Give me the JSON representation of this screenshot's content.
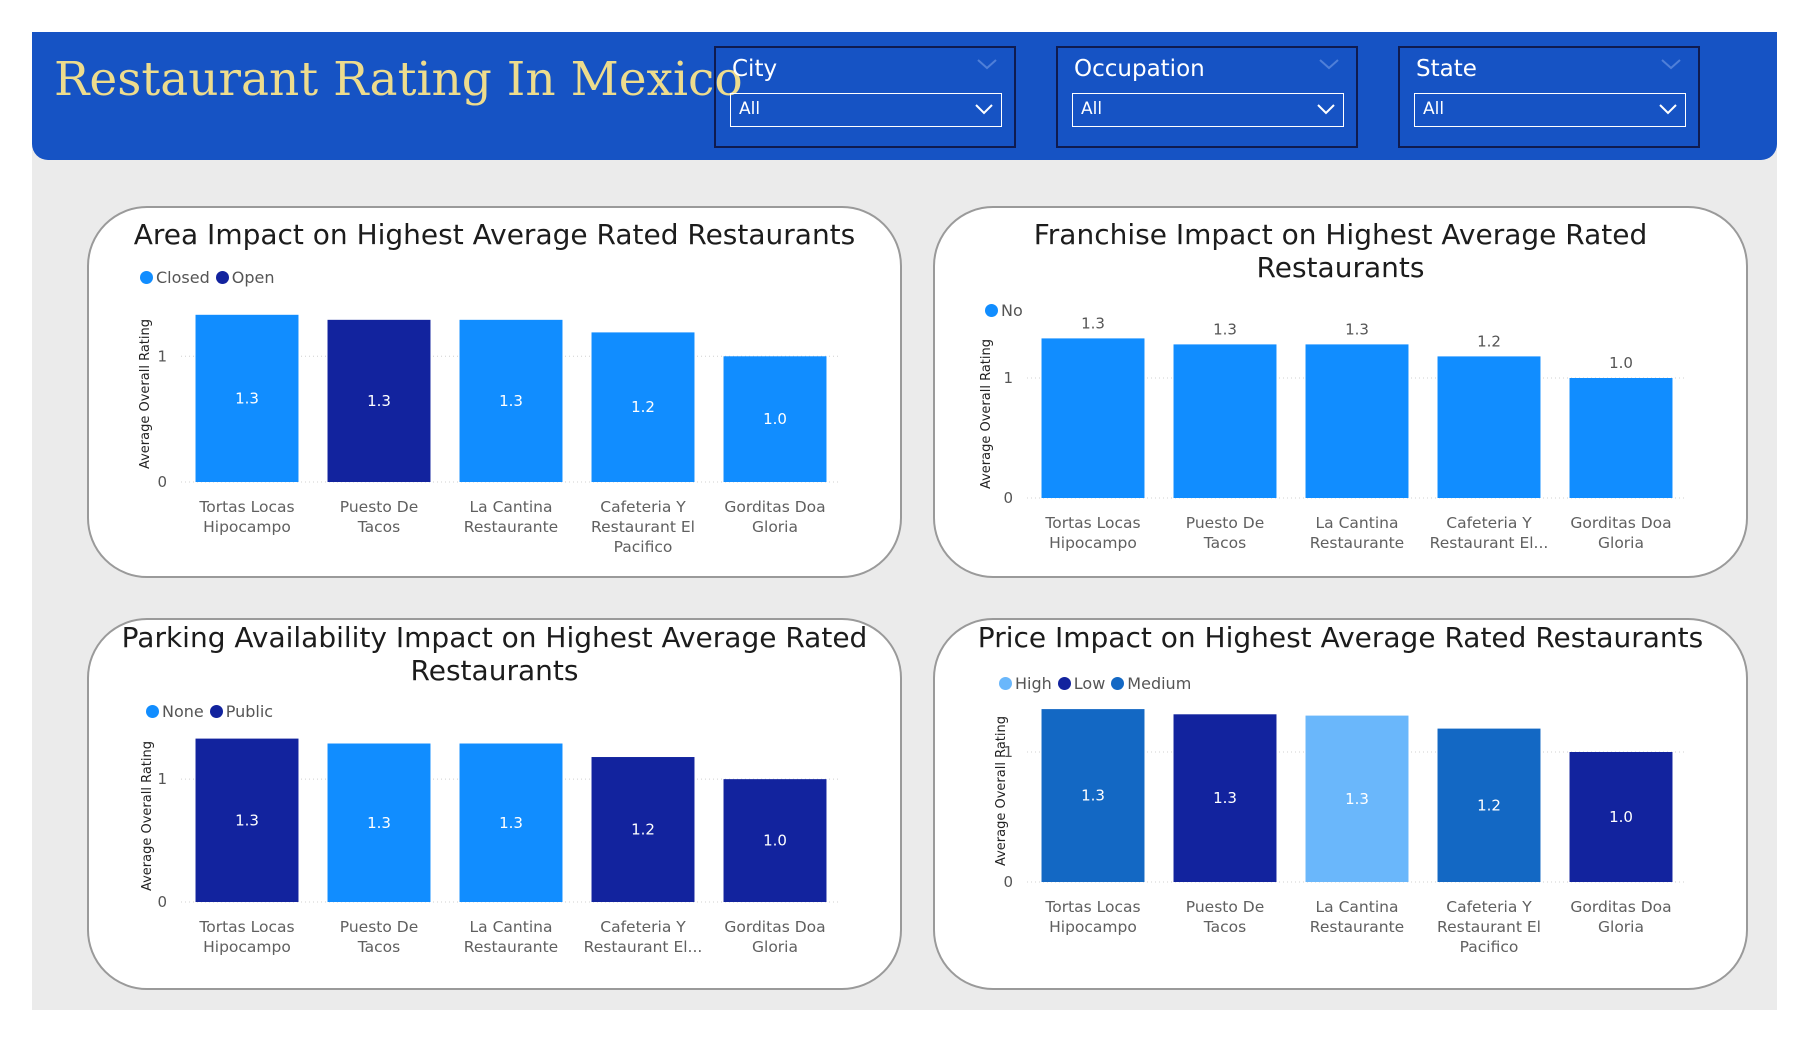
{
  "header": {
    "title": "Restaurant Rating In Mexico"
  },
  "slicers": [
    {
      "label": "City",
      "value": "All"
    },
    {
      "label": "Occupation",
      "value": "All"
    },
    {
      "label": "State",
      "value": "All"
    }
  ],
  "colors": {
    "header_bg": "#1653c4",
    "title_text": "#eddc8d",
    "canvas_bg": "#ebebeb",
    "series_bright": "#118dff",
    "series_dark": "#12239e",
    "series_medium": "#1368c4",
    "series_light": "#6ab7fb"
  },
  "chart_data": [
    {
      "id": "area",
      "type": "bar",
      "title": "Area Impact on Highest Average Rated Restaurants",
      "ylabel": "Average Overall Rating",
      "ylim": [
        0,
        1.4
      ],
      "yticks": [
        "0",
        "1"
      ],
      "legend_position": "top-left",
      "label_position": "inside",
      "legend": [
        {
          "name": "Closed",
          "color": "#118dff"
        },
        {
          "name": "Open",
          "color": "#12239e"
        }
      ],
      "categories": [
        [
          "Tortas Locas",
          "Hipocampo"
        ],
        [
          "Puesto De",
          "Tacos"
        ],
        [
          "La Cantina",
          "Restaurante"
        ],
        [
          "Cafeteria Y",
          "Restaurant El",
          "Pacifico"
        ],
        [
          "Gorditas Doa",
          "Gloria"
        ]
      ],
      "values": [
        1.33,
        1.29,
        1.29,
        1.19,
        1.0
      ],
      "labels": [
        "1.3",
        "1.3",
        "1.3",
        "1.2",
        "1.0"
      ],
      "bar_series": [
        "Closed",
        "Open",
        "Closed",
        "Closed",
        "Closed"
      ]
    },
    {
      "id": "franchise",
      "type": "bar",
      "title": "Franchise Impact on Highest Average Rated Restaurants",
      "ylabel": "Average Overall Rating",
      "ylim": [
        0,
        1.4
      ],
      "yticks": [
        "0",
        "1"
      ],
      "legend_position": "top-left",
      "label_position": "above",
      "legend": [
        {
          "name": "No",
          "color": "#118dff"
        }
      ],
      "categories": [
        [
          "Tortas Locas",
          "Hipocampo"
        ],
        [
          "Puesto De",
          "Tacos"
        ],
        [
          "La Cantina",
          "Restaurante"
        ],
        [
          "Cafeteria Y",
          "Restaurant El..."
        ],
        [
          "Gorditas Doa",
          "Gloria"
        ]
      ],
      "values": [
        1.33,
        1.28,
        1.28,
        1.18,
        1.0
      ],
      "labels": [
        "1.3",
        "1.3",
        "1.3",
        "1.2",
        "1.0"
      ],
      "bar_series": [
        "No",
        "No",
        "No",
        "No",
        "No"
      ]
    },
    {
      "id": "parking",
      "type": "bar",
      "title": "Parking Availability Impact on Highest Average Rated Restaurants",
      "ylabel": "Average Overall Rating",
      "ylim": [
        0,
        1.4
      ],
      "yticks": [
        "0",
        "1"
      ],
      "legend_position": "top-left",
      "label_position": "inside",
      "legend": [
        {
          "name": "None",
          "color": "#118dff"
        },
        {
          "name": "Public",
          "color": "#12239e"
        }
      ],
      "categories": [
        [
          "Tortas Locas",
          "Hipocampo"
        ],
        [
          "Puesto De",
          "Tacos"
        ],
        [
          "La Cantina",
          "Restaurante"
        ],
        [
          "Cafeteria Y",
          "Restaurant El..."
        ],
        [
          "Gorditas Doa",
          "Gloria"
        ]
      ],
      "values": [
        1.33,
        1.29,
        1.29,
        1.18,
        1.0
      ],
      "labels": [
        "1.3",
        "1.3",
        "1.3",
        "1.2",
        "1.0"
      ],
      "bar_series": [
        "Public",
        "None",
        "None",
        "Public",
        "Public"
      ]
    },
    {
      "id": "price",
      "type": "bar",
      "title": "Price Impact on Highest Average Rated Restaurants",
      "ylabel": "Average Overall Rating",
      "ylim": [
        0,
        1.4
      ],
      "yticks": [
        "0",
        "1"
      ],
      "legend_position": "top-left",
      "label_position": "inside",
      "legend": [
        {
          "name": "High",
          "color": "#6ab7fb"
        },
        {
          "name": "Low",
          "color": "#12239e"
        },
        {
          "name": "Medium",
          "color": "#1368c4"
        }
      ],
      "categories": [
        [
          "Tortas Locas",
          "Hipocampo"
        ],
        [
          "Puesto De",
          "Tacos"
        ],
        [
          "La Cantina",
          "Restaurante"
        ],
        [
          "Cafeteria Y",
          "Restaurant El",
          "Pacifico"
        ],
        [
          "Gorditas Doa",
          "Gloria"
        ]
      ],
      "values": [
        1.33,
        1.29,
        1.28,
        1.18,
        1.0
      ],
      "labels": [
        "1.3",
        "1.3",
        "1.3",
        "1.2",
        "1.0"
      ],
      "bar_series": [
        "Medium",
        "Low",
        "High",
        "Medium",
        "Low"
      ]
    }
  ]
}
